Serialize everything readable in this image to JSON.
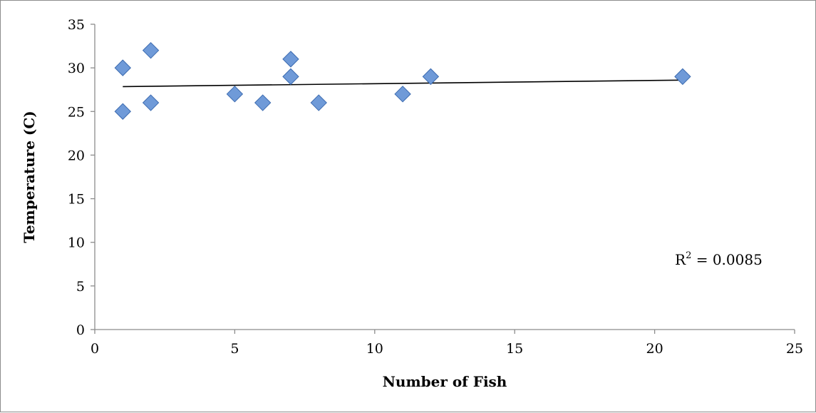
{
  "chart_data": {
    "type": "scatter",
    "xlabel": "Number of Fish",
    "ylabel": "Temperature (C)",
    "xlim": [
      0,
      25
    ],
    "ylim": [
      0,
      35
    ],
    "x_ticks": [
      0,
      5,
      10,
      15,
      20,
      25
    ],
    "y_ticks": [
      0,
      5,
      10,
      15,
      20,
      25,
      30,
      35
    ],
    "grid": false,
    "legend": "none",
    "marker": "diamond",
    "marker_color": "#6f9ad8",
    "marker_edge": "#3c6bb0",
    "points": [
      {
        "x": 1,
        "y": 30
      },
      {
        "x": 1,
        "y": 25
      },
      {
        "x": 2,
        "y": 32
      },
      {
        "x": 2,
        "y": 26
      },
      {
        "x": 5,
        "y": 27
      },
      {
        "x": 6,
        "y": 26
      },
      {
        "x": 7,
        "y": 31
      },
      {
        "x": 7,
        "y": 29
      },
      {
        "x": 8,
        "y": 26
      },
      {
        "x": 11,
        "y": 27
      },
      {
        "x": 12,
        "y": 29
      },
      {
        "x": 21,
        "y": 29
      }
    ],
    "trendline": {
      "x": [
        1,
        21
      ],
      "y": [
        27.85,
        28.6
      ],
      "r2_prefix": "R",
      "r2_exponent": "2",
      "r2_value": " = 0.0085"
    }
  }
}
